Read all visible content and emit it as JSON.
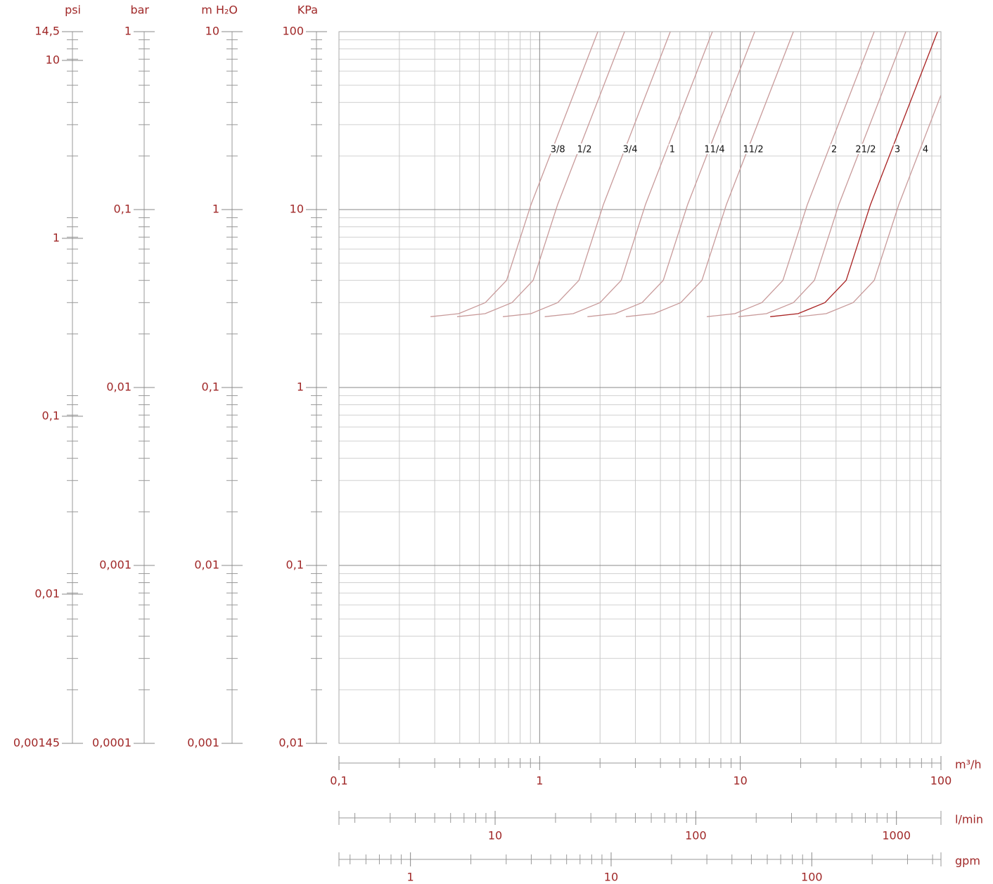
{
  "chart_data": {
    "type": "line",
    "xscale": "log",
    "yscale": "log",
    "grid": true,
    "xlabel": "m³/h",
    "xlim": [
      0.1,
      100
    ],
    "xticks": [
      {
        "value": 0.1,
        "label": "0,1"
      },
      1,
      10,
      100
    ],
    "xminor": [
      0.2,
      0.3,
      0.4,
      0.5,
      0.6,
      0.7,
      0.8,
      0.9,
      2,
      3,
      4,
      5,
      6,
      7,
      8,
      9,
      20,
      30,
      40,
      50,
      60,
      70,
      80,
      90
    ],
    "ylabel": "KPa",
    "ylim": [
      0.01,
      100
    ],
    "yticks": [
      {
        "value": 0.01,
        "label": "0,01"
      },
      {
        "value": 0.1,
        "label": "0,1"
      },
      1,
      10,
      100
    ],
    "yminor": [
      0.02,
      0.03,
      0.04,
      0.05,
      0.06,
      0.07,
      0.08,
      0.09,
      0.2,
      0.3,
      0.4,
      0.5,
      0.6,
      0.7,
      0.8,
      0.9,
      2,
      3,
      4,
      5,
      6,
      7,
      8,
      9,
      20,
      30,
      40,
      50,
      60,
      70,
      80,
      90
    ],
    "y_axes": [
      {
        "label": "psi",
        "lim": [
          0.00145,
          14.5
        ],
        "ticks": [
          {
            "value": 0.00145,
            "label": "0,00145"
          },
          {
            "value": 0.01,
            "label": "0,01"
          },
          {
            "value": 0.1,
            "label": "0,1"
          },
          1,
          10,
          {
            "value": 14.5,
            "label": "14,5"
          }
        ]
      },
      {
        "label": "bar",
        "lim": [
          0.0001,
          1
        ],
        "ticks": [
          {
            "value": 0.0001,
            "label": "0,0001"
          },
          {
            "value": 0.001,
            "label": "0,001"
          },
          {
            "value": 0.01,
            "label": "0,01"
          },
          {
            "value": 0.1,
            "label": "0,1"
          },
          1
        ]
      },
      {
        "label": "m H₂O",
        "lim": [
          0.001,
          10
        ],
        "ticks": [
          {
            "value": 0.001,
            "label": "0,001"
          },
          {
            "value": 0.01,
            "label": "0,01"
          },
          {
            "value": 0.1,
            "label": "0,1"
          },
          1,
          10
        ]
      }
    ],
    "x_axes": [
      {
        "label": "l/min",
        "lim": [
          1.6667,
          1666.7
        ],
        "ticks": [
          10,
          100,
          1000
        ],
        "minor": [
          2,
          3,
          4,
          5,
          6,
          7,
          8,
          9,
          20,
          30,
          40,
          50,
          60,
          70,
          80,
          90,
          200,
          300,
          400,
          500,
          600,
          700,
          800,
          900
        ]
      },
      {
        "label": "gpm",
        "lim": [
          0.4403,
          440.3
        ],
        "ticks": [
          1,
          10,
          100
        ],
        "minor": [
          0.5,
          0.6,
          0.7,
          0.8,
          0.9,
          2,
          3,
          4,
          5,
          6,
          7,
          8,
          9,
          20,
          30,
          40,
          50,
          60,
          70,
          80,
          90,
          200,
          300,
          400
        ]
      }
    ],
    "series": [
      {
        "name": "3/8",
        "color": "#c89a9a",
        "x": [
          0.286,
          0.395,
          0.536,
          0.684,
          0.907,
          1.95
        ],
        "values": [
          2.5,
          2.6,
          3.0,
          4.0,
          10.7,
          100
        ]
      },
      {
        "name": "1/2",
        "color": "#c89a9a",
        "x": [
          0.388,
          0.535,
          0.728,
          0.928,
          1.23,
          2.65
        ],
        "values": [
          2.5,
          2.6,
          3.0,
          4.0,
          10.7,
          100
        ]
      },
      {
        "name": "3/4",
        "color": "#c89a9a",
        "x": [
          0.656,
          0.905,
          1.23,
          1.57,
          2.08,
          4.48
        ],
        "values": [
          2.5,
          2.6,
          3.0,
          4.0,
          10.7,
          100
        ]
      },
      {
        "name": "1",
        "color": "#c89a9a",
        "x": [
          1.06,
          1.47,
          2.0,
          2.55,
          3.37,
          7.26
        ],
        "values": [
          2.5,
          2.6,
          3.0,
          4.0,
          10.7,
          100
        ]
      },
      {
        "name": "11/4",
        "color": "#c89a9a",
        "x": [
          1.73,
          2.38,
          3.24,
          4.13,
          5.47,
          11.8
        ],
        "values": [
          2.5,
          2.6,
          3.0,
          4.0,
          10.7,
          100
        ]
      },
      {
        "name": "11/2",
        "color": "#c89a9a",
        "x": [
          2.69,
          3.71,
          5.05,
          6.44,
          8.53,
          18.4
        ],
        "values": [
          2.5,
          2.6,
          3.0,
          4.0,
          10.7,
          100
        ]
      },
      {
        "name": "2",
        "color": "#c89a9a",
        "x": [
          6.81,
          9.4,
          12.8,
          16.3,
          21.6,
          46.5
        ],
        "values": [
          2.5,
          2.6,
          3.0,
          4.0,
          10.7,
          100
        ]
      },
      {
        "name": "21/2",
        "color": "#c89a9a",
        "x": [
          9.79,
          13.5,
          18.4,
          23.4,
          31.0,
          66.8
        ],
        "values": [
          2.5,
          2.6,
          3.0,
          4.0,
          10.7,
          100
        ]
      },
      {
        "name": "3",
        "color": "#a82020",
        "x": [
          14.1,
          19.4,
          26.4,
          33.7,
          44.6,
          96.1
        ],
        "values": [
          2.5,
          2.6,
          3.0,
          4.0,
          10.7,
          100
        ]
      },
      {
        "name": "4",
        "color": "#c89a9a",
        "x": [
          19.5,
          26.8,
          36.5,
          46.5,
          61.7,
          100
        ],
        "values": [
          2.5,
          2.6,
          3.0,
          4.0,
          10.7,
          44
        ]
      }
    ]
  }
}
